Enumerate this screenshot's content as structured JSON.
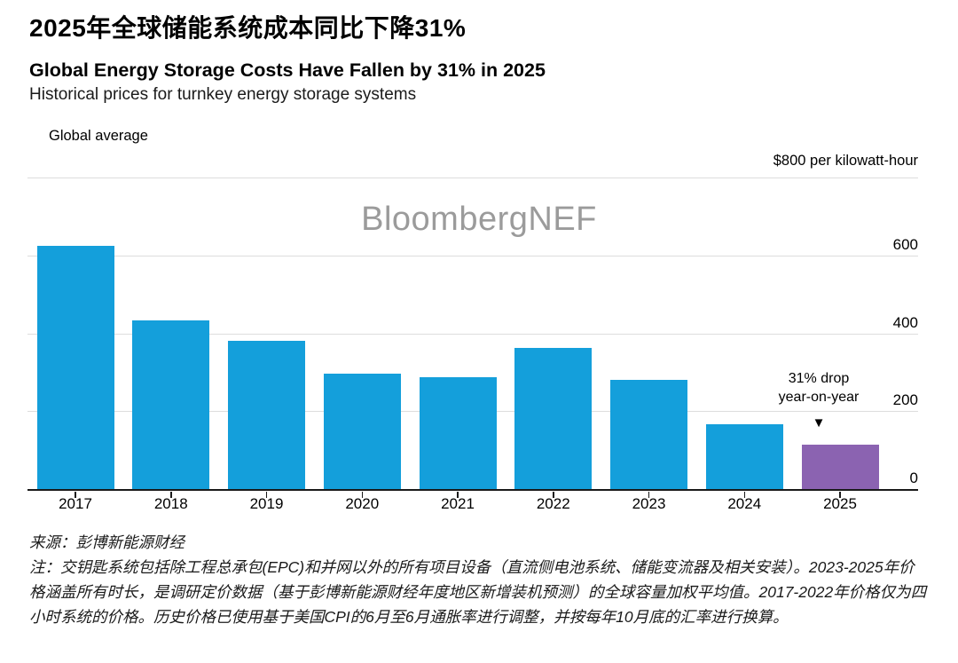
{
  "header": {
    "title_zh": "2025年全球储能系统成本同比下降31%",
    "title_en": "Global Energy Storage Costs Have Fallen by 31% in 2025",
    "subtitle": "Historical prices for turnkey energy storage systems"
  },
  "legend": {
    "label": "Global average",
    "swatch_color": "#149fdb"
  },
  "watermark": "BloombergNEF",
  "chart_data": {
    "type": "bar",
    "title": "Global Energy Storage Costs Have Fallen by 31% in 2025",
    "categories": [
      "2017",
      "2018",
      "2019",
      "2020",
      "2021",
      "2022",
      "2023",
      "2024",
      "2025"
    ],
    "series": [
      {
        "name": "Global average",
        "values": [
          625,
          433,
          381,
          296,
          287,
          363,
          280,
          166,
          114
        ]
      }
    ],
    "unit_label": "$800 per kilowatt-hour",
    "ylabel": "$ per kilowatt-hour",
    "ylim": [
      0,
      800
    ],
    "ytick_step": 200,
    "yticks_right_labels": [
      "600",
      "400",
      "200",
      "0"
    ],
    "grid": true,
    "legend_position": "top-left",
    "highlight_category": "2025",
    "colors": {
      "bar": "#149fdb",
      "highlight": "#8b63b1",
      "gridline": "#dddddd",
      "axis": "#1a1a1a"
    },
    "annotation": {
      "line1": "31% drop",
      "line2": "year-on-year",
      "arrow": "▼",
      "target": "2025"
    }
  },
  "footer": {
    "source": "来源：彭博新能源财经",
    "note": "注：交钥匙系统包括除工程总承包(EPC)和并网以外的所有项目设备（直流侧电池系统、储能变流器及相关安装）。2023-2025年价格涵盖所有时长，是调研定价数据（基于彭博新能源财经年度地区新增装机预测）的全球容量加权平均值。2017-2022年价格仅为四小时系统的价格。历史价格已使用基于美国CPI的6月至6月通胀率进行调整，并按每年10月底的汇率进行换算。"
  }
}
